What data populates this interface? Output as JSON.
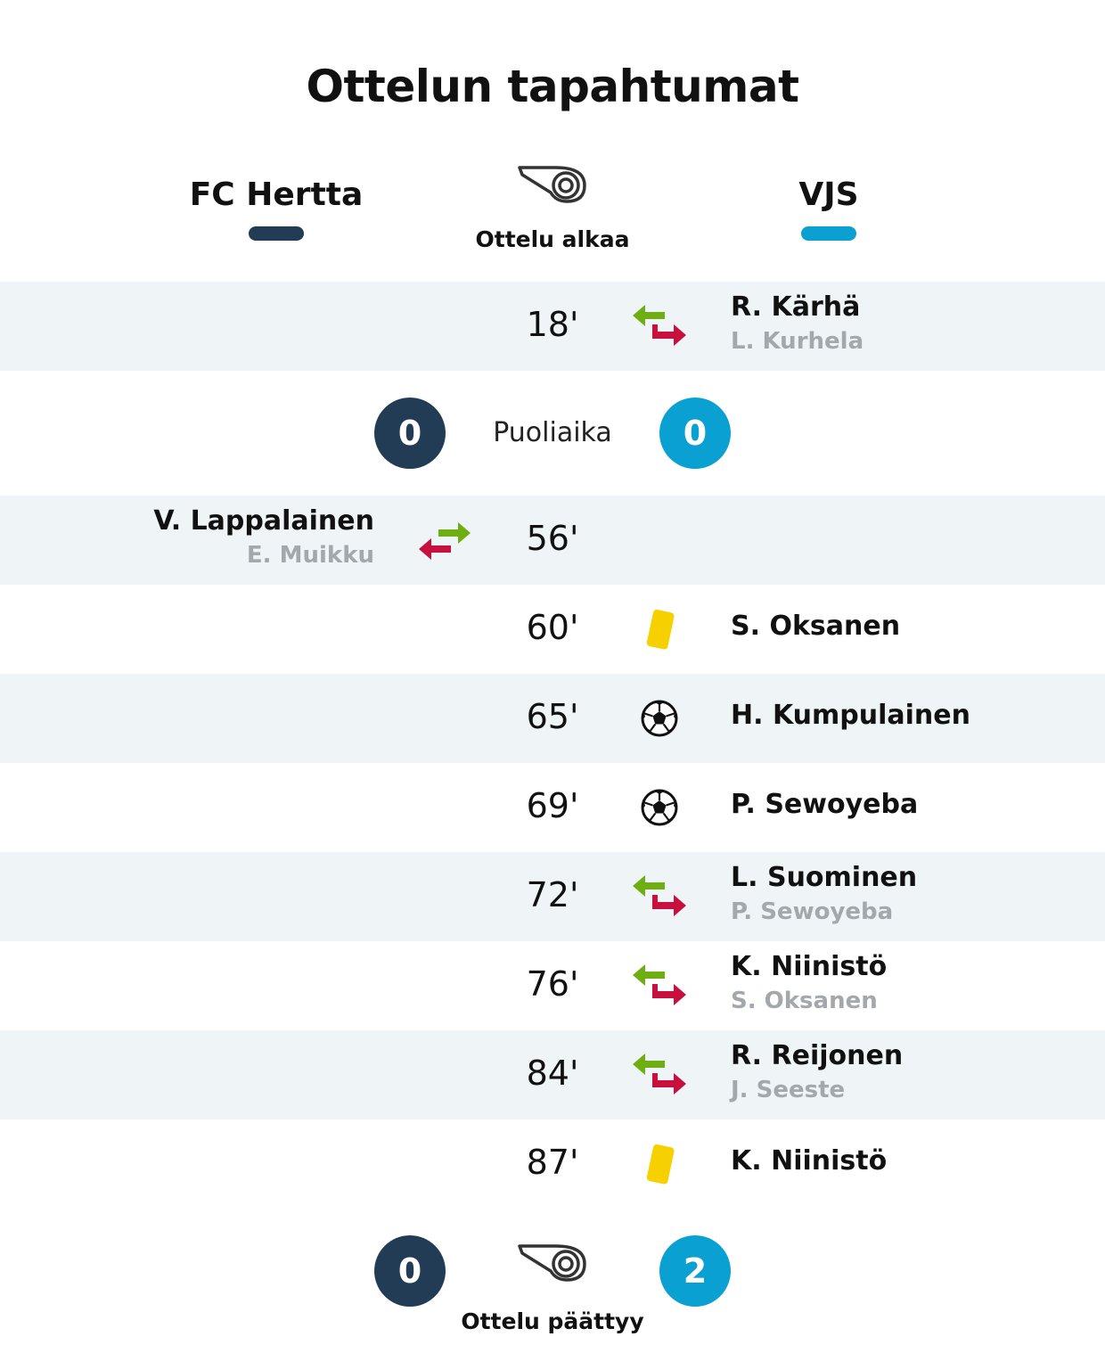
{
  "title": "Ottelun tapahtumat",
  "teams": {
    "home": {
      "name": "FC Hertta",
      "color": "#233c56"
    },
    "away": {
      "name": "VJS",
      "color": "#0aa0d2"
    }
  },
  "start_label": "Ottelu alkaa",
  "halftime": {
    "label": "Puoliaika",
    "home_score": "0",
    "away_score": "0"
  },
  "fulltime": {
    "label": "Ottelu päättyy",
    "home_score": "0",
    "away_score": "2"
  },
  "events": [
    {
      "minute": "18'",
      "type": "substitution",
      "team": "away",
      "player_in": "R. Kärhä",
      "player_out": "L. Kurhela",
      "icon": "substitution-icon"
    },
    {
      "minute": "56'",
      "type": "substitution",
      "team": "home",
      "player_in": "V. Lappalainen",
      "player_out": "E. Muikku",
      "icon": "substitution-icon"
    },
    {
      "minute": "60'",
      "type": "yellow-card",
      "team": "away",
      "player": "S. Oksanen",
      "icon": "yellow-card-icon"
    },
    {
      "minute": "65'",
      "type": "goal",
      "team": "away",
      "player": "H. Kumpulainen",
      "icon": "soccer-ball-icon"
    },
    {
      "minute": "69'",
      "type": "goal",
      "team": "away",
      "player": "P. Sewoyeba",
      "icon": "soccer-ball-icon"
    },
    {
      "minute": "72'",
      "type": "substitution",
      "team": "away",
      "player_in": "L. Suominen",
      "player_out": "P. Sewoyeba",
      "icon": "substitution-icon"
    },
    {
      "minute": "76'",
      "type": "substitution",
      "team": "away",
      "player_in": "K. Niinistö",
      "player_out": "S. Oksanen",
      "icon": "substitution-icon"
    },
    {
      "minute": "84'",
      "type": "substitution",
      "team": "away",
      "player_in": "R. Reijonen",
      "player_out": "J. Seeste",
      "icon": "substitution-icon"
    },
    {
      "minute": "87'",
      "type": "yellow-card",
      "team": "away",
      "player": "K. Niinistö",
      "icon": "yellow-card-icon"
    }
  ],
  "colors": {
    "sub_in": "#6fae12",
    "sub_out": "#c8103e",
    "yellow_card": "#f7d000",
    "row_shade": "#eff4f7"
  }
}
